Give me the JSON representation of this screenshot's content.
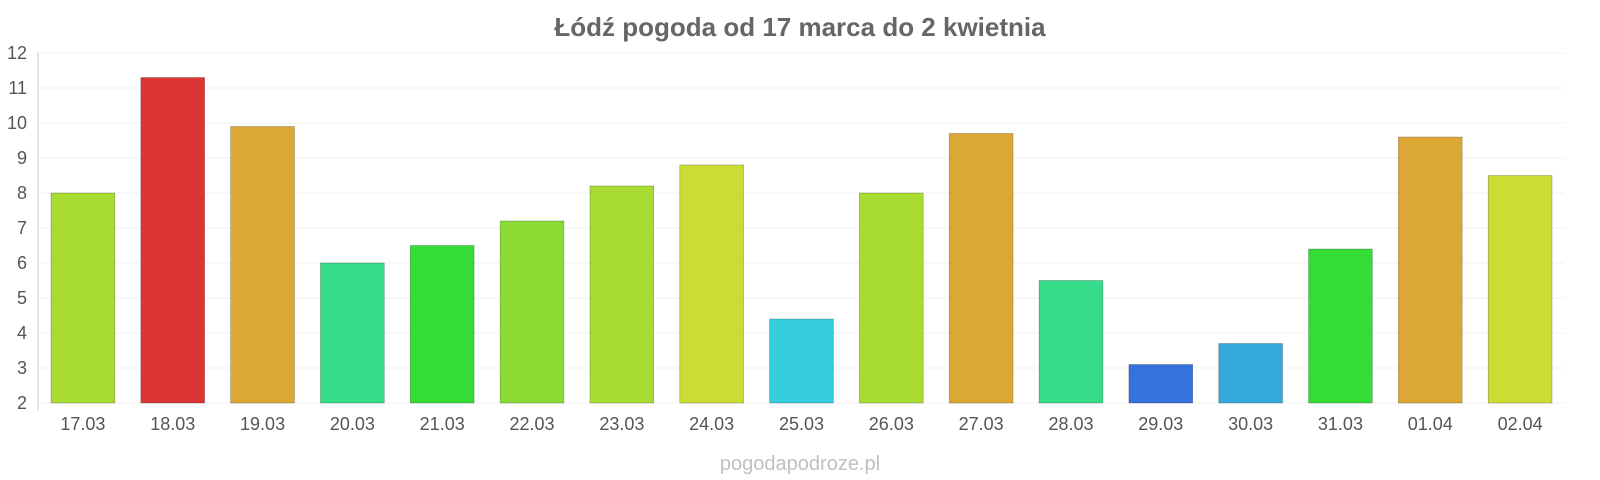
{
  "chart_data": {
    "type": "bar",
    "title": "Łódź pogoda od 17 marca do 2 kwietnia",
    "xlabel": "",
    "ylabel": "",
    "categories": [
      "17.03",
      "18.03",
      "19.03",
      "20.03",
      "21.03",
      "22.03",
      "23.03",
      "24.03",
      "25.03",
      "26.03",
      "27.03",
      "28.03",
      "29.03",
      "30.03",
      "31.03",
      "01.04",
      "02.04"
    ],
    "values": [
      8.0,
      11.3,
      9.9,
      6.0,
      6.5,
      7.2,
      8.2,
      8.8,
      4.4,
      8.0,
      9.7,
      5.5,
      3.1,
      3.7,
      6.4,
      9.6,
      8.5
    ],
    "colors": [
      "#a8dc32",
      "#dc3535",
      "#dca835",
      "#35dc8a",
      "#35dc35",
      "#8adc35",
      "#a8dc32",
      "#cddc35",
      "#35cddc",
      "#a8dc32",
      "#dca835",
      "#35dc8a",
      "#3572dc",
      "#35a8dc",
      "#35dc35",
      "#dca835",
      "#cddc35"
    ],
    "ylim": [
      2,
      12
    ],
    "yticks": [
      2,
      3,
      4,
      5,
      6,
      7,
      8,
      9,
      10,
      11,
      12
    ],
    "grid": true,
    "legend": "none"
  },
  "watermark": "pogodapodroze.pl"
}
